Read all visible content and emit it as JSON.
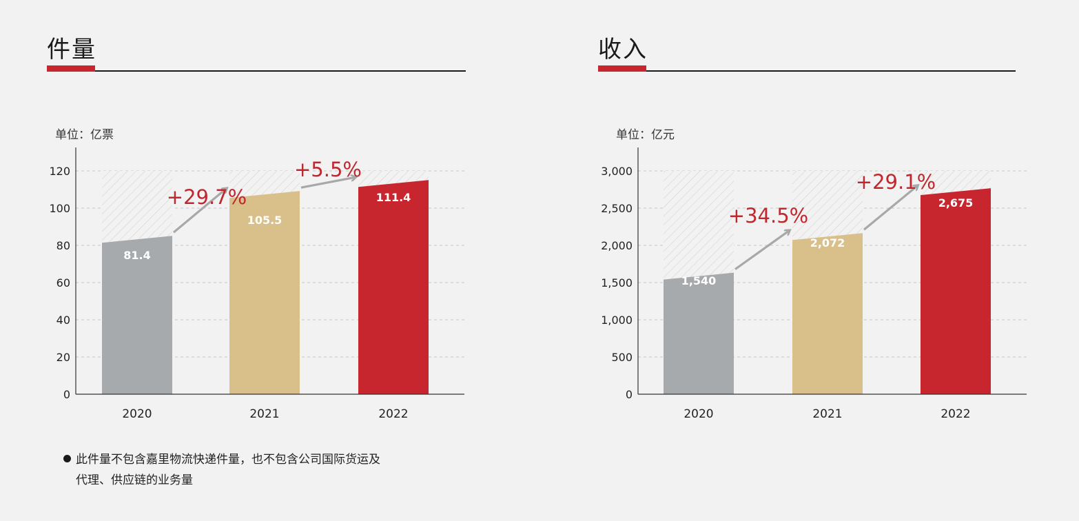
{
  "footnote": {
    "line1": "此件量不包含嘉里物流快递件量，也不包含公司国际货运及",
    "line2": "代理、供应链的业务量"
  },
  "colors": {
    "background": "#f2f2f2",
    "accent": "#c8262f",
    "bar_2020": "#a7aaad",
    "bar_2021": "#d9bf8a",
    "bar_2022": "#c8262f",
    "growth_text": "#c0282f",
    "arrow": "#a8a8a8",
    "grid": "#c6c6c6"
  },
  "chart_data": [
    {
      "type": "bar",
      "title": "件量",
      "ylabel": "单位：亿票",
      "xlabel": "",
      "categories": [
        "2020",
        "2021",
        "2022"
      ],
      "values": [
        81.4,
        105.5,
        111.4
      ],
      "value_labels": [
        "81.4",
        "105.5",
        "111.4"
      ],
      "bar_colors": [
        "#a7aaad",
        "#d9bf8a",
        "#c8262f"
      ],
      "ylim": [
        0,
        120
      ],
      "yticks": [
        0,
        20,
        40,
        60,
        80,
        100,
        120
      ],
      "ytick_labels": [
        "0",
        "20",
        "40",
        "60",
        "80",
        "100",
        "120"
      ],
      "grid": "dashed horizontal",
      "growth_labels": [
        "+29.7%",
        "+5.5%"
      ]
    },
    {
      "type": "bar",
      "title": "收入",
      "ylabel": "单位：亿元",
      "xlabel": "",
      "categories": [
        "2020",
        "2021",
        "2022"
      ],
      "values": [
        1540,
        2072,
        2675
      ],
      "value_labels": [
        "1,540",
        "2,072",
        "2,675"
      ],
      "bar_colors": [
        "#a7aaad",
        "#d9bf8a",
        "#c8262f"
      ],
      "ylim": [
        0,
        3000
      ],
      "yticks": [
        0,
        500,
        1000,
        1500,
        2000,
        2500,
        3000
      ],
      "ytick_labels": [
        "0",
        "500",
        "1,000",
        "1,500",
        "2,000",
        "2,500",
        "3,000"
      ],
      "grid": "dashed horizontal",
      "growth_labels": [
        "+34.5%",
        "+29.1%"
      ]
    }
  ]
}
